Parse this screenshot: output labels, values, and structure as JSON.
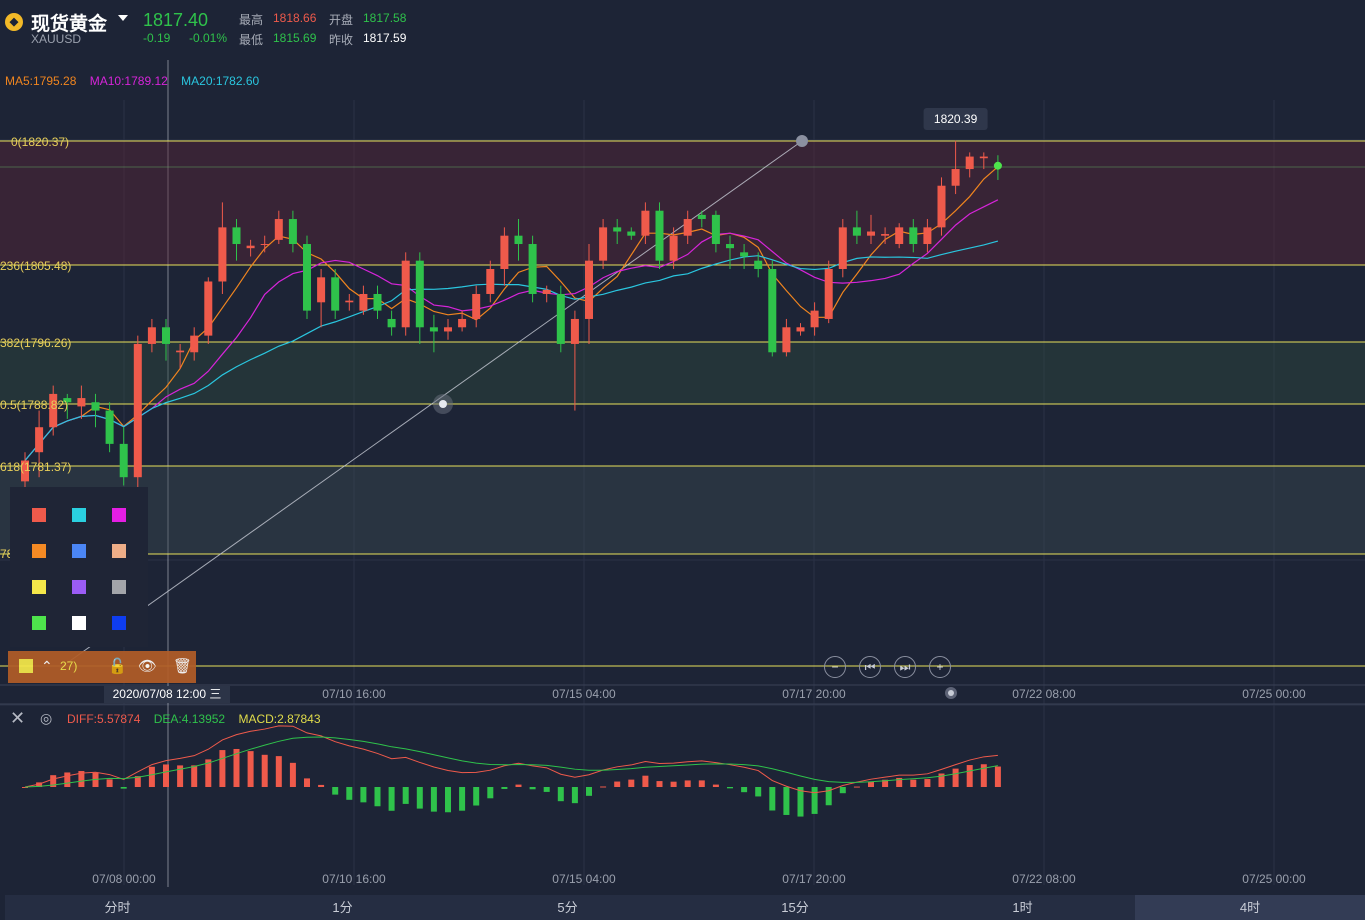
{
  "header": {
    "name": "现货黄金",
    "symbol": "XAUUSD",
    "price": "1817.40",
    "change": "-0.19",
    "change_pct": "-0.01%",
    "stats": [
      {
        "label": "最高",
        "value": "1818.66",
        "color": "#ef5a4b"
      },
      {
        "label": "开盘",
        "value": "1817.58",
        "color": "#2fc24b"
      },
      {
        "label": "最低",
        "value": "1815.69",
        "color": "#2fc24b"
      },
      {
        "label": "昨收",
        "value": "1817.59",
        "color": "#ffffff"
      }
    ]
  },
  "ma": [
    {
      "label": "MA5:1795.28",
      "color": "#f0851f"
    },
    {
      "label": "MA10:1789.12",
      "color": "#d624d9"
    },
    {
      "label": "MA20:1782.60",
      "color": "#2ac6df"
    }
  ],
  "fib": {
    "labels": [
      "0(1820.37)",
      "236(1805.48)",
      "382(1796.26)",
      "0.5(1788.82)",
      "618(1781.37)",
      "78",
      "27)"
    ],
    "colors": {
      "line": "#e8e15a",
      "label": "#e8cf5a"
    }
  },
  "tooltip": {
    "value": "1820.39"
  },
  "palette": {
    "colors": [
      "#ef5a4b",
      "#2ad0e0",
      "#e51ee4",
      "#f58a24",
      "#4b86f5",
      "#eeae88",
      "#f5e84a",
      "#9b5cf5",
      "#a3a5aa",
      "#4ee44c",
      "#ffffff",
      "#0e3df0"
    ]
  },
  "toolbar": {
    "text": "27)",
    "up_icon": "⌃",
    "lock_icon": "🔓",
    "eye_icon": "👁",
    "trash_icon": "🗑"
  },
  "crosshair": {
    "date": "2020/07/08 12:00 三"
  },
  "nav": {
    "zoom_out": "−",
    "prev": "⏮",
    "next": "⏭",
    "zoom_in": "+"
  },
  "xaxis": {
    "ticks": [
      "07/08 00:00",
      "07/10 16:00",
      "07/15 04:00",
      "07/17 20:00",
      "07/22 08:00",
      "07/25 00:00"
    ]
  },
  "macd": {
    "diff": "DIFF:5.57874",
    "dea": "DEA:4.13952",
    "macd": "MACD:2.87843",
    "colors": {
      "diff": "#ef5a4b",
      "dea": "#2fc24b",
      "macd": "#e0dc4a"
    }
  },
  "tabs": [
    "分时",
    "1分",
    "5分",
    "15分",
    "1时",
    "4时"
  ],
  "chart_data": {
    "type": "candlestick",
    "series": [
      {
        "o": 1779.5,
        "c": 1782.0,
        "h": 1783.0,
        "l": 1778.0
      },
      {
        "o": 1783.0,
        "c": 1786.0,
        "h": 1788.0,
        "l": 1780.0
      },
      {
        "o": 1786.0,
        "c": 1790.0,
        "h": 1791.0,
        "l": 1785.0
      },
      {
        "o": 1789.5,
        "c": 1789.0,
        "h": 1790.0,
        "l": 1787.0
      },
      {
        "o": 1788.5,
        "c": 1789.5,
        "h": 1791.0,
        "l": 1787.0
      },
      {
        "o": 1789.0,
        "c": 1788.0,
        "h": 1790.0,
        "l": 1786.0
      },
      {
        "o": 1788.0,
        "c": 1784.0,
        "h": 1789.0,
        "l": 1783.0
      },
      {
        "o": 1784.0,
        "c": 1780.0,
        "h": 1786.0,
        "l": 1779.0
      },
      {
        "o": 1780.0,
        "c": 1796.0,
        "h": 1797.0,
        "l": 1778.0
      },
      {
        "o": 1796.0,
        "c": 1798.0,
        "h": 1799.0,
        "l": 1795.0
      },
      {
        "o": 1798.0,
        "c": 1796.0,
        "h": 1799.0,
        "l": 1794.0
      },
      {
        "o": 1795.0,
        "c": 1795.2,
        "h": 1796.0,
        "l": 1793.0
      },
      {
        "o": 1795.0,
        "c": 1797.0,
        "h": 1798.0,
        "l": 1794.0
      },
      {
        "o": 1797.0,
        "c": 1803.5,
        "h": 1804.0,
        "l": 1796.0
      },
      {
        "o": 1803.5,
        "c": 1810.0,
        "h": 1813.0,
        "l": 1802.0
      },
      {
        "o": 1810.0,
        "c": 1808.0,
        "h": 1811.0,
        "l": 1806.0
      },
      {
        "o": 1807.5,
        "c": 1807.8,
        "h": 1808.5,
        "l": 1806.5
      },
      {
        "o": 1808.0,
        "c": 1808.0,
        "h": 1809.0,
        "l": 1807.0
      },
      {
        "o": 1808.5,
        "c": 1811.0,
        "h": 1812.0,
        "l": 1808.0
      },
      {
        "o": 1811.0,
        "c": 1808.0,
        "h": 1812.0,
        "l": 1807.0
      },
      {
        "o": 1808.0,
        "c": 1800.0,
        "h": 1809.0,
        "l": 1799.0
      },
      {
        "o": 1801.0,
        "c": 1804.0,
        "h": 1805.0,
        "l": 1798.0
      },
      {
        "o": 1804.0,
        "c": 1800.0,
        "h": 1805.0,
        "l": 1799.0
      },
      {
        "o": 1801.0,
        "c": 1801.2,
        "h": 1802.0,
        "l": 1800.0
      },
      {
        "o": 1800.0,
        "c": 1802.0,
        "h": 1803.0,
        "l": 1799.5
      },
      {
        "o": 1802.0,
        "c": 1800.0,
        "h": 1803.0,
        "l": 1799.0
      },
      {
        "o": 1799.0,
        "c": 1798.0,
        "h": 1800.0,
        "l": 1797.0
      },
      {
        "o": 1798.0,
        "c": 1806.0,
        "h": 1807.0,
        "l": 1797.0
      },
      {
        "o": 1806.0,
        "c": 1798.0,
        "h": 1807.0,
        "l": 1796.0
      },
      {
        "o": 1798.0,
        "c": 1797.5,
        "h": 1799.5,
        "l": 1795.0
      },
      {
        "o": 1797.5,
        "c": 1798.0,
        "h": 1799.0,
        "l": 1796.5
      },
      {
        "o": 1798.0,
        "c": 1799.0,
        "h": 1800.0,
        "l": 1797.5
      },
      {
        "o": 1799.0,
        "c": 1802.0,
        "h": 1803.0,
        "l": 1798.0
      },
      {
        "o": 1802.0,
        "c": 1805.0,
        "h": 1806.0,
        "l": 1801.0
      },
      {
        "o": 1805.0,
        "c": 1809.0,
        "h": 1810.0,
        "l": 1803.0
      },
      {
        "o": 1809.0,
        "c": 1808.0,
        "h": 1811.0,
        "l": 1806.0
      },
      {
        "o": 1808.0,
        "c": 1802.0,
        "h": 1809.0,
        "l": 1801.0
      },
      {
        "o": 1802.0,
        "c": 1802.5,
        "h": 1803.0,
        "l": 1801.0
      },
      {
        "o": 1802.0,
        "c": 1796.0,
        "h": 1803.0,
        "l": 1795.0
      },
      {
        "o": 1796.0,
        "c": 1799.0,
        "h": 1800.0,
        "l": 1788.0
      },
      {
        "o": 1799.0,
        "c": 1806.0,
        "h": 1808.0,
        "l": 1796.0
      },
      {
        "o": 1806.0,
        "c": 1810.0,
        "h": 1811.0,
        "l": 1805.0
      },
      {
        "o": 1810.0,
        "c": 1809.5,
        "h": 1811.0,
        "l": 1808.0
      },
      {
        "o": 1809.5,
        "c": 1809.0,
        "h": 1810.0,
        "l": 1808.5
      },
      {
        "o": 1809.0,
        "c": 1812.0,
        "h": 1813.0,
        "l": 1808.0
      },
      {
        "o": 1812.0,
        "c": 1806.0,
        "h": 1813.0,
        "l": 1805.0
      },
      {
        "o": 1806.0,
        "c": 1809.0,
        "h": 1810.0,
        "l": 1805.0
      },
      {
        "o": 1809.0,
        "c": 1811.0,
        "h": 1812.0,
        "l": 1808.0
      },
      {
        "o": 1811.5,
        "c": 1811.0,
        "h": 1812.0,
        "l": 1810.0
      },
      {
        "o": 1811.5,
        "c": 1808.0,
        "h": 1812.0,
        "l": 1807.0
      },
      {
        "o": 1808.0,
        "c": 1807.5,
        "h": 1809.0,
        "l": 1805.0
      },
      {
        "o": 1807.0,
        "c": 1806.5,
        "h": 1808.0,
        "l": 1805.0
      },
      {
        "o": 1806.0,
        "c": 1805.0,
        "h": 1807.0,
        "l": 1804.0
      },
      {
        "o": 1805.0,
        "c": 1795.0,
        "h": 1806.0,
        "l": 1794.5
      },
      {
        "o": 1795.0,
        "c": 1798.0,
        "h": 1799.0,
        "l": 1794.5
      },
      {
        "o": 1797.5,
        "c": 1798.0,
        "h": 1798.5,
        "l": 1797.0
      },
      {
        "o": 1798.0,
        "c": 1800.0,
        "h": 1801.0,
        "l": 1797.0
      },
      {
        "o": 1799.0,
        "c": 1805.0,
        "h": 1806.0,
        "l": 1798.5
      },
      {
        "o": 1805.0,
        "c": 1810.0,
        "h": 1811.0,
        "l": 1804.0
      },
      {
        "o": 1810.0,
        "c": 1809.0,
        "h": 1812.0,
        "l": 1808.0
      },
      {
        "o": 1809.0,
        "c": 1809.5,
        "h": 1811.5,
        "l": 1808.0
      },
      {
        "o": 1809.0,
        "c": 1809.2,
        "h": 1810.0,
        "l": 1808.0
      },
      {
        "o": 1808.0,
        "c": 1810.0,
        "h": 1810.5,
        "l": 1807.5
      },
      {
        "o": 1810.0,
        "c": 1808.0,
        "h": 1811.0,
        "l": 1807.0
      },
      {
        "o": 1808.0,
        "c": 1810.0,
        "h": 1811.0,
        "l": 1807.0
      },
      {
        "o": 1810.0,
        "c": 1815.0,
        "h": 1816.0,
        "l": 1809.0
      },
      {
        "o": 1815.0,
        "c": 1817.0,
        "h": 1820.39,
        "l": 1814.0
      },
      {
        "o": 1817.0,
        "c": 1818.5,
        "h": 1819.0,
        "l": 1816.0
      },
      {
        "o": 1818.3,
        "c": 1818.5,
        "h": 1819.0,
        "l": 1817.0
      },
      {
        "o": 1817.58,
        "c": 1817.4,
        "h": 1818.66,
        "l": 1815.69
      }
    ]
  }
}
